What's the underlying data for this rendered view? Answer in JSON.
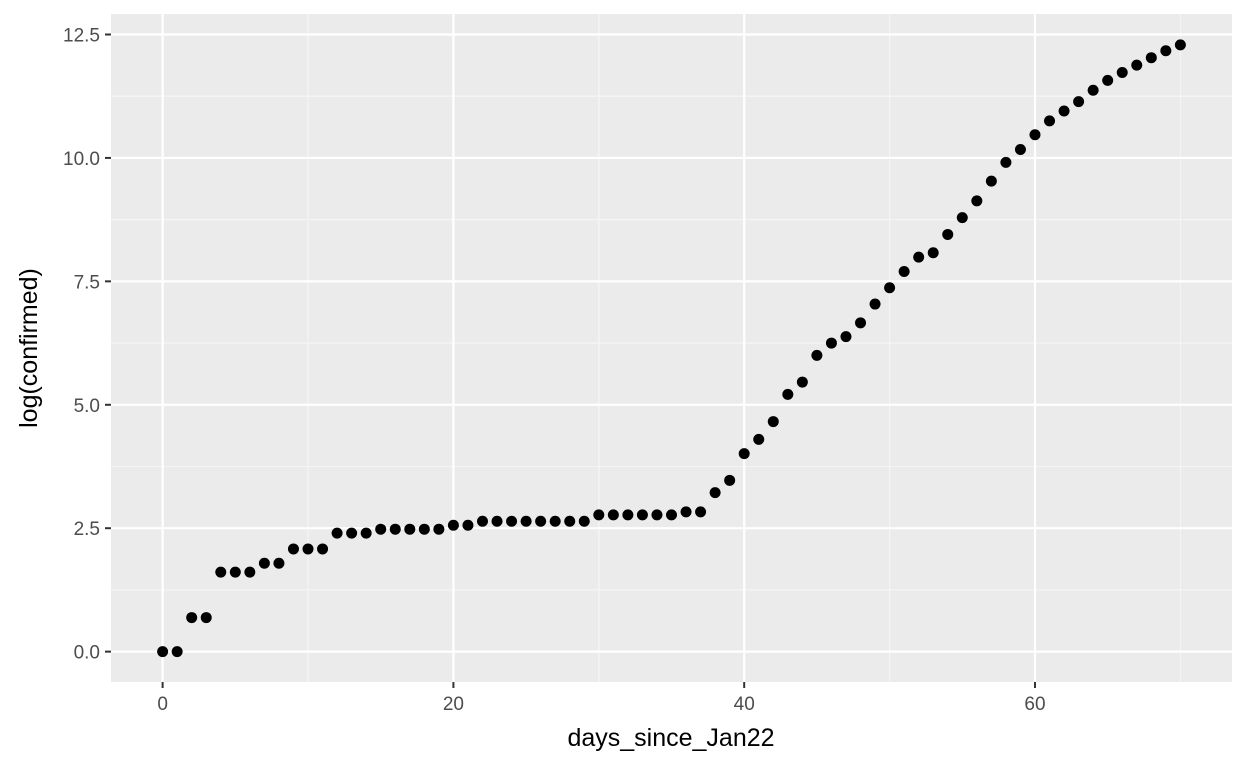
{
  "colors": {
    "panel_background": "#EBEBEB",
    "grid_major": "#FFFFFF",
    "grid_minor": "#F5F5F5",
    "point": "#000000",
    "tick_label": "#4D4D4D",
    "tick_mark": "#333333"
  },
  "chart_data": {
    "type": "scatter",
    "title": "",
    "xlabel": "days_since_Jan22",
    "ylabel": "log(confirmed)",
    "xlim": [
      -3.55,
      73.55
    ],
    "ylim": [
      -0.615,
      12.915
    ],
    "x_ticks": [
      0,
      20,
      40,
      60
    ],
    "x_tick_labels": [
      "0",
      "20",
      "40",
      "60"
    ],
    "y_ticks": [
      0.0,
      2.5,
      5.0,
      7.5,
      10.0,
      12.5
    ],
    "y_tick_labels": [
      "0.0",
      "2.5",
      "5.0",
      "7.5",
      "10.0",
      "12.5"
    ],
    "grid": true,
    "legend": "none",
    "series": [
      {
        "x": [
          0,
          1,
          2,
          3,
          4,
          5,
          6,
          7,
          8,
          9,
          10,
          11,
          12,
          13,
          14,
          15,
          16,
          17,
          18,
          19,
          20,
          21,
          22,
          23,
          24,
          25,
          26,
          27,
          28,
          29,
          30,
          31,
          32,
          33,
          34,
          35,
          36,
          37,
          38,
          39,
          40,
          41,
          42,
          43,
          44,
          45,
          46,
          47,
          48,
          49,
          50,
          51,
          52,
          53,
          54,
          55,
          56,
          57,
          58,
          59,
          60,
          61,
          62,
          63,
          64,
          65,
          66,
          67,
          68,
          69,
          70
        ],
        "y": [
          0.0,
          0.0,
          0.69,
          0.69,
          1.61,
          1.61,
          1.61,
          1.79,
          1.79,
          2.08,
          2.08,
          2.08,
          2.4,
          2.4,
          2.4,
          2.48,
          2.48,
          2.48,
          2.48,
          2.48,
          2.56,
          2.56,
          2.64,
          2.64,
          2.64,
          2.64,
          2.64,
          2.64,
          2.64,
          2.64,
          2.77,
          2.77,
          2.77,
          2.77,
          2.77,
          2.77,
          2.83,
          2.83,
          3.22,
          3.47,
          4.01,
          4.3,
          4.66,
          5.21,
          5.46,
          6.0,
          6.25,
          6.38,
          6.66,
          7.04,
          7.37,
          7.7,
          7.99,
          8.08,
          8.45,
          8.79,
          9.13,
          9.53,
          9.91,
          10.17,
          10.47,
          10.75,
          10.95,
          11.14,
          11.37,
          11.57,
          11.73,
          11.88,
          12.03,
          12.17,
          12.29
        ]
      }
    ]
  }
}
